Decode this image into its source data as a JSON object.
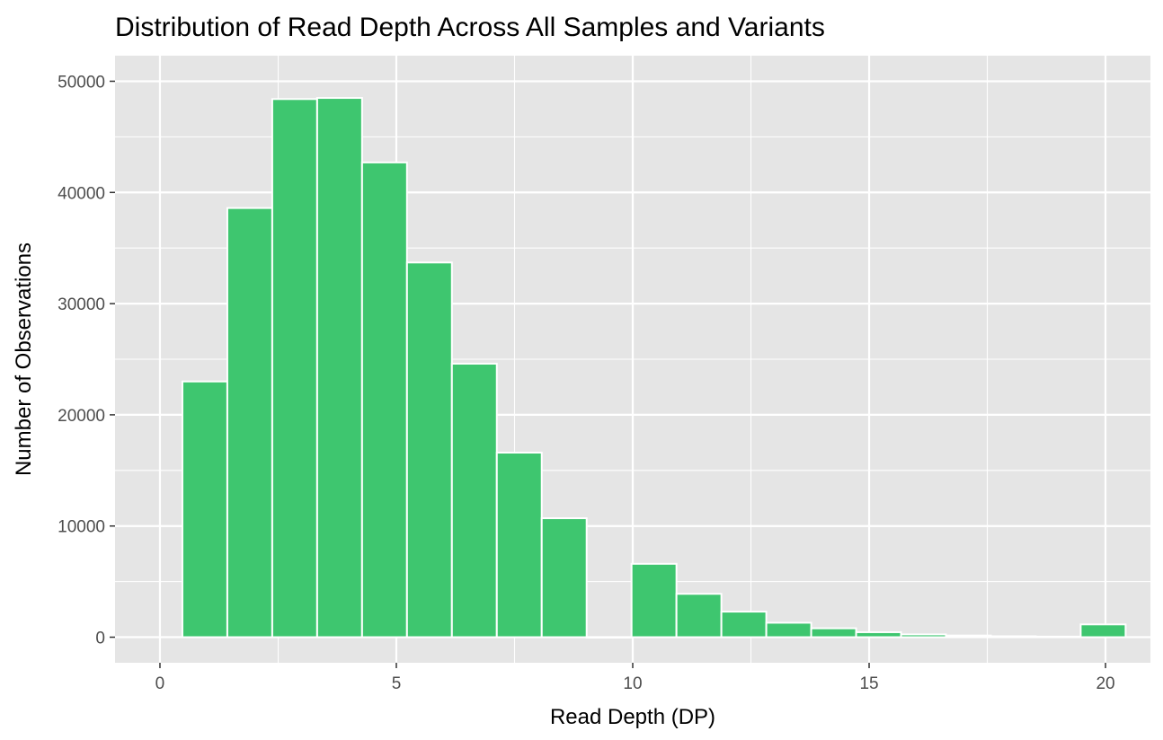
{
  "chart_data": {
    "type": "bar",
    "title": "Distribution of Read Depth Across All Samples and Variants",
    "xlabel": "Read Depth (DP)",
    "ylabel": "Number of Observations",
    "xlim": [
      -0.95,
      20.95
    ],
    "ylim": [
      -2300,
      52300
    ],
    "x_ticks": [
      0,
      5,
      10,
      15,
      20
    ],
    "y_ticks": [
      0,
      10000,
      20000,
      30000,
      40000,
      50000
    ],
    "grid": true,
    "bin_width": 0.95,
    "bins": [
      {
        "x": 0.95,
        "value": 23000
      },
      {
        "x": 1.9,
        "value": 38600
      },
      {
        "x": 2.85,
        "value": 48400
      },
      {
        "x": 3.8,
        "value": 48500
      },
      {
        "x": 4.75,
        "value": 42700
      },
      {
        "x": 5.7,
        "value": 33700
      },
      {
        "x": 6.65,
        "value": 24600
      },
      {
        "x": 7.6,
        "value": 16600
      },
      {
        "x": 8.55,
        "value": 10700
      },
      {
        "x": 9.5,
        "value": 0
      },
      {
        "x": 10.45,
        "value": 6600
      },
      {
        "x": 11.4,
        "value": 3900
      },
      {
        "x": 12.35,
        "value": 2300
      },
      {
        "x": 13.3,
        "value": 1300
      },
      {
        "x": 14.25,
        "value": 800
      },
      {
        "x": 15.2,
        "value": 450
      },
      {
        "x": 16.15,
        "value": 250
      },
      {
        "x": 17.1,
        "value": 150
      },
      {
        "x": 18.05,
        "value": 80
      },
      {
        "x": 19.0,
        "value": 50
      },
      {
        "x": 19.95,
        "value": 1150
      }
    ],
    "bar_color": "#3ec66f",
    "bar_outline": "#ffffff",
    "panel_background": "#e5e5e5",
    "grid_color": "#ffffff"
  }
}
